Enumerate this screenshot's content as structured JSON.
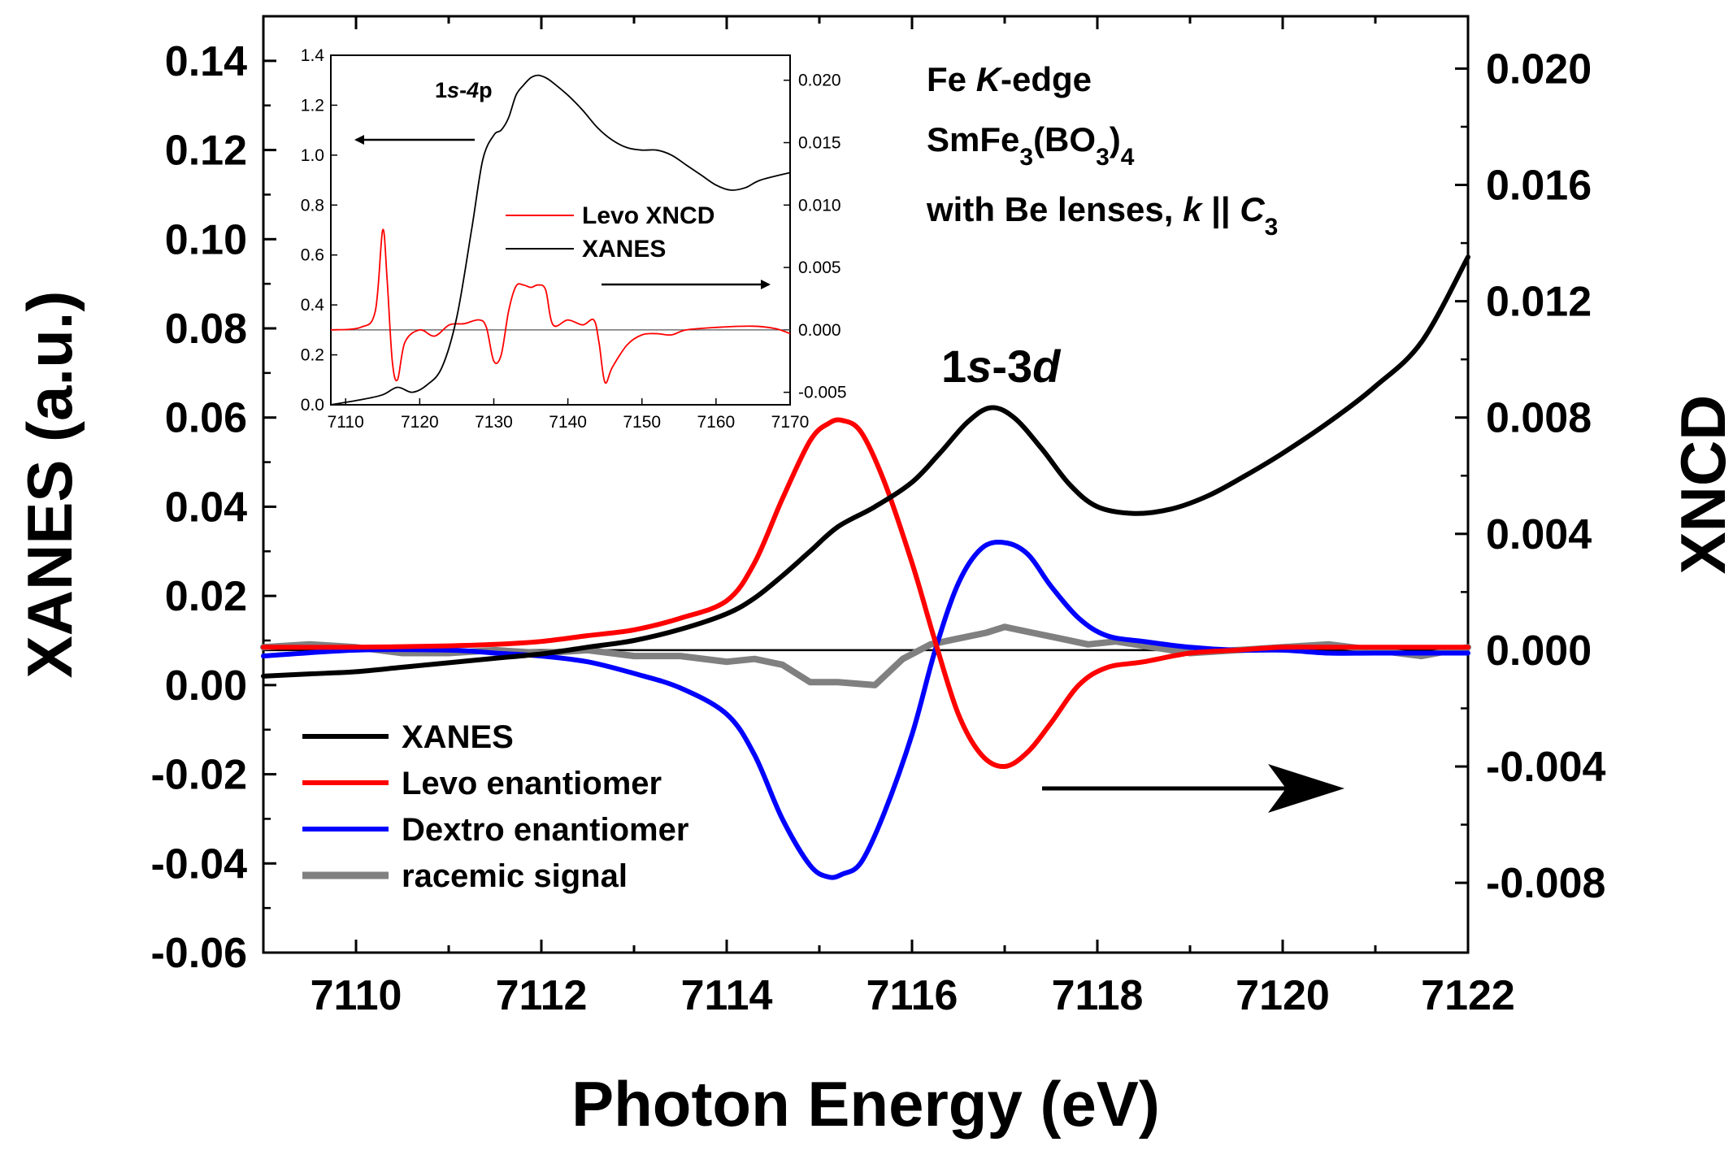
{
  "chart_data": [
    {
      "type": "line",
      "role": "main",
      "xlabel": "Photon Energy (eV)",
      "ylabel": "XANES (a.u.)",
      "y2label": "XNCD",
      "xlim": [
        7109,
        7122
      ],
      "ylim": [
        -0.06,
        0.15
      ],
      "y2lim": [
        -0.0104,
        0.0218
      ],
      "xticks": [
        7110,
        7112,
        7114,
        7116,
        7118,
        7120,
        7122
      ],
      "xtick_labels": [
        "7110",
        "7112",
        "7114",
        "7116",
        "7118",
        "7120",
        "7122"
      ],
      "yticks": [
        -0.06,
        -0.04,
        -0.02,
        0.0,
        0.02,
        0.04,
        0.06,
        0.08,
        0.1,
        0.12,
        0.14
      ],
      "ytick_labels": [
        "-0.06",
        "-0.04",
        "-0.02",
        "0.00",
        "0.02",
        "0.04",
        "0.06",
        "0.08",
        "0.10",
        "0.12",
        "0.14"
      ],
      "y2ticks": [
        -0.008,
        -0.004,
        0.0,
        0.004,
        0.008,
        0.012,
        0.016,
        0.02
      ],
      "y2tick_labels": [
        "-0.008",
        "-0.004",
        "0.000",
        "0.004",
        "0.008",
        "0.012",
        "0.016",
        "0.020"
      ],
      "zero_line_y2": 0.0,
      "annotations": {
        "peak_label": "1s-3d",
        "edge_line1": "Fe K-edge",
        "edge_line2": "SmFe3(BO3)4",
        "edge_line3": "with Be lenses, k || C3"
      },
      "legend_position": "lower-left",
      "series": [
        {
          "name": "XANES",
          "axis": "left",
          "color": "#000000",
          "x": [
            7109,
            7109.5,
            7110,
            7110.5,
            7111,
            7111.5,
            7112,
            7112.5,
            7113,
            7113.5,
            7114,
            7114.3,
            7114.6,
            7114.9,
            7115.2,
            7115.6,
            7116,
            7116.3,
            7116.6,
            7116.85,
            7117.1,
            7117.4,
            7117.7,
            7118,
            7118.4,
            7118.8,
            7119.2,
            7119.6,
            7120,
            7120.5,
            7121,
            7121.5,
            7122
          ],
          "values": [
            0.002,
            0.0025,
            0.003,
            0.004,
            0.005,
            0.006,
            0.007,
            0.0085,
            0.01,
            0.0125,
            0.016,
            0.0195,
            0.0245,
            0.03,
            0.0355,
            0.04,
            0.0455,
            0.052,
            0.059,
            0.0622,
            0.06,
            0.053,
            0.045,
            0.04,
            0.0385,
            0.0395,
            0.0425,
            0.047,
            0.052,
            0.059,
            0.067,
            0.077,
            0.096
          ]
        },
        {
          "name": "Levo enantiomer",
          "axis": "right",
          "color": "#ff0000",
          "x": [
            7109,
            7110,
            7111,
            7111.5,
            7112,
            7112.5,
            7113,
            7113.5,
            7114,
            7114.3,
            7114.6,
            7114.9,
            7115.1,
            7115.25,
            7115.45,
            7115.7,
            7116,
            7116.25,
            7116.5,
            7116.75,
            7117,
            7117.25,
            7117.5,
            7117.8,
            7118.1,
            7118.5,
            7119,
            7119.5,
            7120,
            7120.5,
            7121,
            7122
          ],
          "values": [
            0.0001,
            0.0001,
            0.00015,
            0.0002,
            0.0003,
            0.0005,
            0.0007,
            0.0011,
            0.0017,
            0.003,
            0.0052,
            0.0072,
            0.0078,
            0.0079,
            0.0075,
            0.0058,
            0.003,
            0.0003,
            -0.0022,
            -0.0036,
            -0.004,
            -0.0035,
            -0.0025,
            -0.0012,
            -0.0006,
            -0.0004,
            -0.0001,
            0.0,
            0.0001,
            0.0001,
            0.0001,
            0.0001
          ]
        },
        {
          "name": "Dextro enantiomer",
          "axis": "right",
          "color": "#0000ff",
          "x": [
            7109,
            7110,
            7111,
            7111.5,
            7112,
            7112.5,
            7113,
            7113.5,
            7114,
            7114.3,
            7114.6,
            7114.9,
            7115.1,
            7115.25,
            7115.45,
            7115.7,
            7116,
            7116.25,
            7116.5,
            7116.75,
            7117,
            7117.25,
            7117.5,
            7117.8,
            7118.1,
            7118.5,
            7119,
            7119.5,
            7120,
            7120.5,
            7121,
            7122
          ],
          "values": [
            -0.0002,
            0.0,
            0.0,
            -0.0001,
            -0.0002,
            -0.0004,
            -0.0008,
            -0.0013,
            -0.0022,
            -0.0036,
            -0.0058,
            -0.0074,
            -0.0078,
            -0.0077,
            -0.0073,
            -0.0056,
            -0.0029,
            0.0,
            0.0023,
            0.0035,
            0.0037,
            0.0033,
            0.0022,
            0.0011,
            0.0005,
            0.0003,
            0.0001,
            0.0,
            0.0,
            -0.0001,
            -0.0001,
            -0.0001
          ]
        },
        {
          "name": "racemic signal",
          "axis": "right",
          "color": "#808080",
          "x": [
            7109,
            7109.5,
            7110,
            7110.5,
            7111,
            7111.5,
            7112,
            7112.5,
            7113,
            7113.5,
            7114,
            7114.3,
            7114.6,
            7114.9,
            7115.2,
            7115.6,
            7115.9,
            7116.2,
            7116.5,
            7116.8,
            7117,
            7117.3,
            7117.6,
            7117.9,
            7118.2,
            7118.6,
            7119,
            7119.5,
            7120,
            7120.5,
            7121,
            7121.5,
            7122
          ],
          "values": [
            0.0001,
            0.0002,
            0.0001,
            -0.0001,
            -0.0001,
            0.0,
            -0.0001,
            0.0,
            -0.0002,
            -0.0002,
            -0.0004,
            -0.0003,
            -0.0005,
            -0.0011,
            -0.0011,
            -0.0012,
            -0.0003,
            0.0002,
            0.0004,
            0.0006,
            0.0008,
            0.0006,
            0.0004,
            0.0002,
            0.0003,
            0.0001,
            -0.0001,
            0.0,
            0.0001,
            0.0002,
            0.0,
            -0.0002,
            0.0001
          ]
        }
      ]
    },
    {
      "type": "line",
      "role": "inset",
      "xlim": [
        7108,
        7170
      ],
      "ylim": [
        0.0,
        1.4
      ],
      "y2lim": [
        -0.006,
        0.022
      ],
      "xticks": [
        7110,
        7120,
        7130,
        7140,
        7150,
        7160,
        7170
      ],
      "xtick_labels": [
        "7110",
        "7120",
        "7130",
        "7140",
        "7150",
        "7160",
        "7170"
      ],
      "yticks": [
        0.0,
        0.2,
        0.4,
        0.6,
        0.8,
        1.0,
        1.2,
        1.4
      ],
      "ytick_labels": [
        "0.0",
        "0.2",
        "0.4",
        "0.6",
        "0.8",
        "1.0",
        "1.2",
        "1.4"
      ],
      "y2ticks": [
        -0.005,
        0.0,
        0.005,
        0.01,
        0.015,
        0.02
      ],
      "y2tick_labels": [
        "-0.005",
        "0.000",
        "0.005",
        "0.010",
        "0.015",
        "0.020"
      ],
      "zero_line_y2": 0.0,
      "annotations": {
        "edge_label": "1s-4p"
      },
      "legend_position": "middle-right",
      "series": [
        {
          "name": "Levo XNCD",
          "axis": "right",
          "color": "#ff0000",
          "x": [
            7108,
            7112,
            7114,
            7115,
            7115.6,
            7116.3,
            7117,
            7118,
            7120,
            7122,
            7124,
            7126,
            7128,
            7129,
            7130,
            7131,
            7132,
            7133,
            7134,
            7135,
            7136,
            7137,
            7138,
            7140,
            7142,
            7143.5,
            7144.2,
            7145,
            7146,
            7148,
            7150,
            7152,
            7154,
            7156,
            7160,
            7165,
            7168,
            7170
          ],
          "values": [
            0.0,
            0.0002,
            0.0015,
            0.008,
            0.004,
            -0.0025,
            -0.004,
            -0.001,
            0.0,
            -0.0005,
            0.0004,
            0.0005,
            0.0008,
            0.0002,
            -0.0025,
            -0.002,
            0.0015,
            0.0035,
            0.0036,
            0.0034,
            0.0036,
            0.0032,
            0.0004,
            0.0008,
            0.0004,
            0.0008,
            -0.001,
            -0.0042,
            -0.003,
            -0.0012,
            -0.0004,
            -0.0003,
            -0.0004,
            0.0,
            0.0002,
            0.0003,
            0.0001,
            -0.0003
          ]
        },
        {
          "name": "XANES",
          "axis": "left",
          "color": "#000000",
          "x": [
            7108,
            7112,
            7115,
            7117,
            7119,
            7121,
            7123,
            7125,
            7127,
            7128.5,
            7130,
            7131,
            7132,
            7133,
            7134,
            7135,
            7136,
            7137,
            7138,
            7140,
            7142,
            7144,
            7146,
            7148,
            7150,
            7152,
            7154,
            7156,
            7158,
            7160,
            7162,
            7164,
            7166,
            7170
          ],
          "values": [
            0.0,
            0.02,
            0.04,
            0.07,
            0.05,
            0.08,
            0.15,
            0.35,
            0.7,
            0.98,
            1.08,
            1.1,
            1.15,
            1.24,
            1.28,
            1.31,
            1.32,
            1.31,
            1.29,
            1.24,
            1.18,
            1.11,
            1.06,
            1.03,
            1.02,
            1.02,
            1.0,
            0.96,
            0.92,
            0.88,
            0.86,
            0.87,
            0.9,
            0.93
          ]
        }
      ]
    }
  ]
}
